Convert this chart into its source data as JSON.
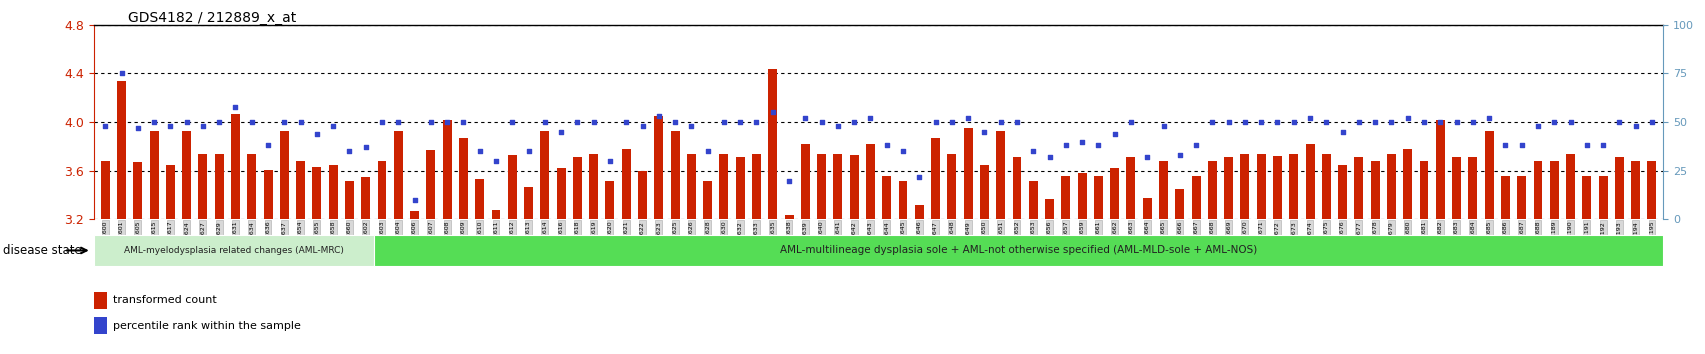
{
  "title": "GDS4182 / 212889_x_at",
  "ylim_left": [
    3.2,
    4.8
  ],
  "ylim_right": [
    0,
    100
  ],
  "yticks_left": [
    3.2,
    3.6,
    4.0,
    4.4,
    4.8
  ],
  "yticks_right": [
    0,
    25,
    50,
    75,
    100
  ],
  "bar_color": "#cc2200",
  "dot_color": "#3344cc",
  "bar_baseline": 3.2,
  "background_color": "#ffffff",
  "sample_labels": [
    "GSM531600",
    "GSM531601",
    "GSM531605",
    "GSM531615",
    "GSM531617",
    "GSM531624",
    "GSM531627",
    "GSM531629",
    "GSM531631",
    "GSM531634",
    "GSM531636",
    "GSM531637",
    "GSM531654",
    "GSM531655",
    "GSM531658",
    "GSM531660",
    "GSM531602",
    "GSM531603",
    "GSM531604",
    "GSM531606",
    "GSM531607",
    "GSM531608",
    "GSM531609",
    "GSM531610",
    "GSM531611",
    "GSM531612",
    "GSM531613",
    "GSM531614",
    "GSM531616",
    "GSM531618",
    "GSM531619",
    "GSM531620",
    "GSM531621",
    "GSM531622",
    "GSM531623",
    "GSM531625",
    "GSM531626",
    "GSM531628",
    "GSM531630",
    "GSM531632",
    "GSM531633",
    "GSM531635",
    "GSM531638",
    "GSM531639",
    "GSM531640",
    "GSM531641",
    "GSM531642",
    "GSM531643",
    "GSM531644",
    "GSM531645",
    "GSM531646",
    "GSM531647",
    "GSM531648",
    "GSM531649",
    "GSM531650",
    "GSM531651",
    "GSM531652",
    "GSM531653",
    "GSM531656",
    "GSM531657",
    "GSM531659",
    "GSM531661",
    "GSM531662",
    "GSM531663",
    "GSM531664",
    "GSM531665",
    "GSM531666",
    "GSM531667",
    "GSM531668",
    "GSM531669",
    "GSM531670",
    "GSM531671",
    "GSM531672",
    "GSM531673",
    "GSM531674",
    "GSM531675",
    "GSM531676",
    "GSM531677",
    "GSM531678",
    "GSM531679",
    "GSM531680",
    "GSM531681",
    "GSM531682",
    "GSM531683",
    "GSM531684",
    "GSM531685",
    "GSM531686",
    "GSM531687",
    "GSM531688",
    "GSM531189",
    "GSM531190",
    "GSM531191",
    "GSM531192",
    "GSM531193",
    "GSM531194",
    "GSM531195"
  ],
  "bar_values": [
    3.68,
    4.34,
    3.67,
    3.93,
    3.65,
    3.93,
    3.74,
    3.74,
    4.07,
    3.74,
    3.61,
    3.93,
    3.68,
    3.63,
    3.65,
    3.52,
    3.55,
    3.68,
    3.93,
    3.27,
    3.77,
    4.02,
    3.87,
    3.53,
    3.28,
    3.73,
    3.47,
    3.93,
    3.62,
    3.71,
    3.74,
    3.52,
    3.78,
    3.6,
    4.05,
    3.93,
    3.74,
    3.52,
    3.74,
    3.71,
    3.74,
    4.44,
    3.24,
    3.82,
    3.74,
    3.74,
    3.73,
    3.82,
    3.56,
    3.52,
    3.32,
    3.87,
    3.74,
    3.95,
    3.65,
    3.93,
    3.71,
    3.52,
    3.37,
    3.56,
    3.58,
    3.56,
    3.62,
    3.71,
    3.38,
    3.68,
    3.45,
    3.56,
    3.68,
    3.71,
    3.74,
    3.74,
    3.72,
    3.74,
    3.82,
    3.74,
    3.65,
    3.71,
    3.68,
    3.74,
    3.78,
    3.68,
    4.02,
    3.71,
    3.71,
    3.93,
    3.56,
    3.56,
    3.68,
    3.68,
    3.74,
    3.56,
    3.56,
    3.71,
    3.68,
    3.68
  ],
  "dot_values": [
    48,
    75,
    47,
    50,
    48,
    50,
    48,
    50,
    58,
    50,
    38,
    50,
    50,
    44,
    48,
    35,
    37,
    50,
    50,
    10,
    50,
    50,
    50,
    35,
    30,
    50,
    35,
    50,
    45,
    50,
    50,
    30,
    50,
    48,
    53,
    50,
    48,
    35,
    50,
    50,
    50,
    55,
    20,
    52,
    50,
    48,
    50,
    52,
    38,
    35,
    22,
    50,
    50,
    52,
    45,
    50,
    50,
    35,
    32,
    38,
    40,
    38,
    44,
    50,
    32,
    48,
    33,
    38,
    50,
    50,
    50,
    50,
    50,
    50,
    52,
    50,
    45,
    50,
    50,
    50,
    52,
    50,
    50,
    50,
    50,
    52,
    38,
    38,
    48,
    50,
    50,
    38,
    38,
    50,
    48,
    50
  ],
  "group1_label": "AML-myelodysplasia related changes (AML-MRC)",
  "group2_label": "AML-multilineage dysplasia sole + AML-not otherwise specified (AML-MLD-sole + AML-NOS)",
  "group1_color": "#cceecc",
  "group2_color": "#55dd55",
  "group1_count": 17,
  "disease_state_label": "disease state",
  "legend_bar_label": "transformed count",
  "legend_dot_label": "percentile rank within the sample",
  "bar_color_legend": "#cc2200",
  "dot_color_legend": "#3344cc",
  "tick_label_color_left": "#cc2200",
  "tick_label_color_right": "#6699bb"
}
